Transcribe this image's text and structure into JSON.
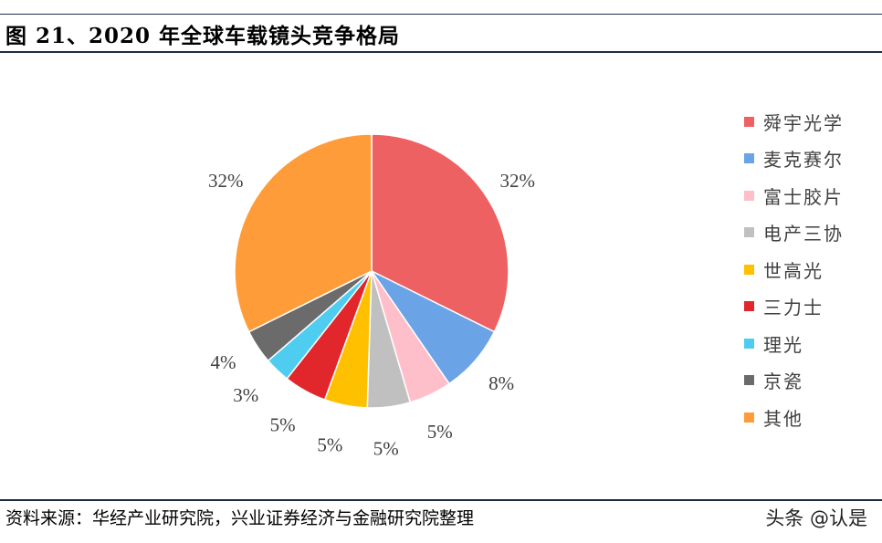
{
  "header": {
    "title": "图 21、2020 年全球车载镜头竞争格局"
  },
  "chart_data": {
    "type": "pie",
    "title": "",
    "slices": [
      {
        "label": "舜宇光学",
        "value": 32,
        "label_text": "32%",
        "color": "#ee6163"
      },
      {
        "label": "麦克赛尔",
        "value": 8,
        "label_text": "8%",
        "color": "#6aa3e6"
      },
      {
        "label": "富士胶片",
        "value": 5,
        "label_text": "5%",
        "color": "#ffbfca"
      },
      {
        "label": "电产三协",
        "value": 5,
        "label_text": "5%",
        "color": "#c0c0c0"
      },
      {
        "label": "世高光",
        "value": 5,
        "label_text": "5%",
        "color": "#ffc000"
      },
      {
        "label": "三力士",
        "value": 5,
        "label_text": "5%",
        "color": "#e1262c"
      },
      {
        "label": "理光",
        "value": 3,
        "label_text": "3%",
        "color": "#4fcdf0"
      },
      {
        "label": "京瓷",
        "value": 4,
        "label_text": "4%",
        "color": "#6b6b6b"
      },
      {
        "label": "其他",
        "value": 32,
        "label_text": "32%",
        "color": "#ff9c3a"
      }
    ],
    "legend_placement": "right"
  },
  "footer": {
    "source": "资料来源：华经产业研究院，兴业证券经济与金融研究院整理",
    "watermark": "头条 @认是"
  }
}
